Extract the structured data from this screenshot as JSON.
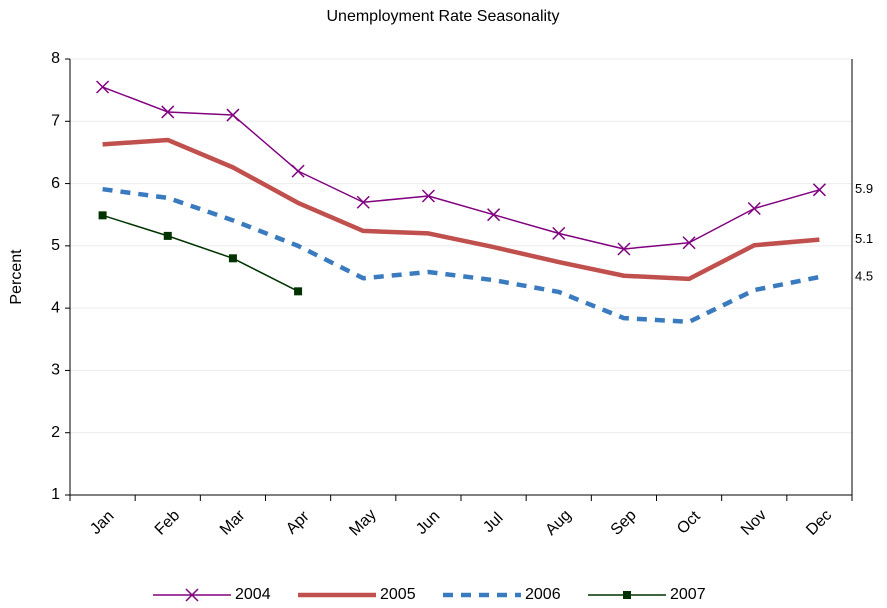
{
  "chart_data": {
    "type": "line",
    "title": "Unemployment Rate Seasonality",
    "y_label": "Percent",
    "categories": [
      "Jan",
      "Feb",
      "Mar",
      "Apr",
      "May",
      "Jun",
      "Jul",
      "Aug",
      "Sep",
      "Oct",
      "Nov",
      "Dec"
    ],
    "ylim": [
      1,
      8
    ],
    "yticks": [
      1,
      2,
      3,
      4,
      5,
      6,
      7,
      8
    ],
    "grid": true,
    "legend": "bottom",
    "series": [
      {
        "name": "2004",
        "color": "#800080",
        "marker": "x",
        "line_style": "solid",
        "line_width": 1.5,
        "values": [
          7.55,
          7.15,
          7.1,
          6.2,
          5.7,
          5.8,
          5.5,
          5.2,
          4.95,
          5.05,
          5.6,
          5.9
        ],
        "value_labels": [
          null,
          null,
          null,
          null,
          null,
          null,
          null,
          null,
          null,
          null,
          null,
          "5.9"
        ]
      },
      {
        "name": "2005",
        "color": "#c0504d",
        "marker": "none",
        "line_style": "solid",
        "line_width": 4.5,
        "values": [
          6.63,
          6.7,
          6.26,
          5.69,
          5.24,
          5.2,
          4.98,
          4.74,
          4.52,
          4.47,
          5.01,
          5.1
        ],
        "value_labels": [
          null,
          null,
          null,
          null,
          null,
          null,
          null,
          null,
          null,
          null,
          null,
          "5.1"
        ]
      },
      {
        "name": "2006",
        "color": "#3a7bbf",
        "marker": "none",
        "line_style": "dashed",
        "line_width": 4.5,
        "values": [
          5.91,
          5.77,
          5.41,
          5.0,
          4.48,
          4.58,
          4.45,
          4.26,
          3.84,
          3.78,
          4.29,
          4.5
        ],
        "value_labels": [
          null,
          null,
          null,
          null,
          null,
          null,
          null,
          null,
          null,
          null,
          null,
          "4.5"
        ]
      },
      {
        "name": "2007",
        "color": "#003300",
        "marker": "square",
        "line_style": "solid",
        "line_width": 1.5,
        "values": [
          5.49,
          5.16,
          4.8,
          4.27,
          null,
          null,
          null,
          null,
          null,
          null,
          null,
          null
        ],
        "value_labels": [
          null,
          null,
          null,
          null,
          null,
          null,
          null,
          null,
          null,
          null,
          null,
          null
        ]
      }
    ]
  }
}
